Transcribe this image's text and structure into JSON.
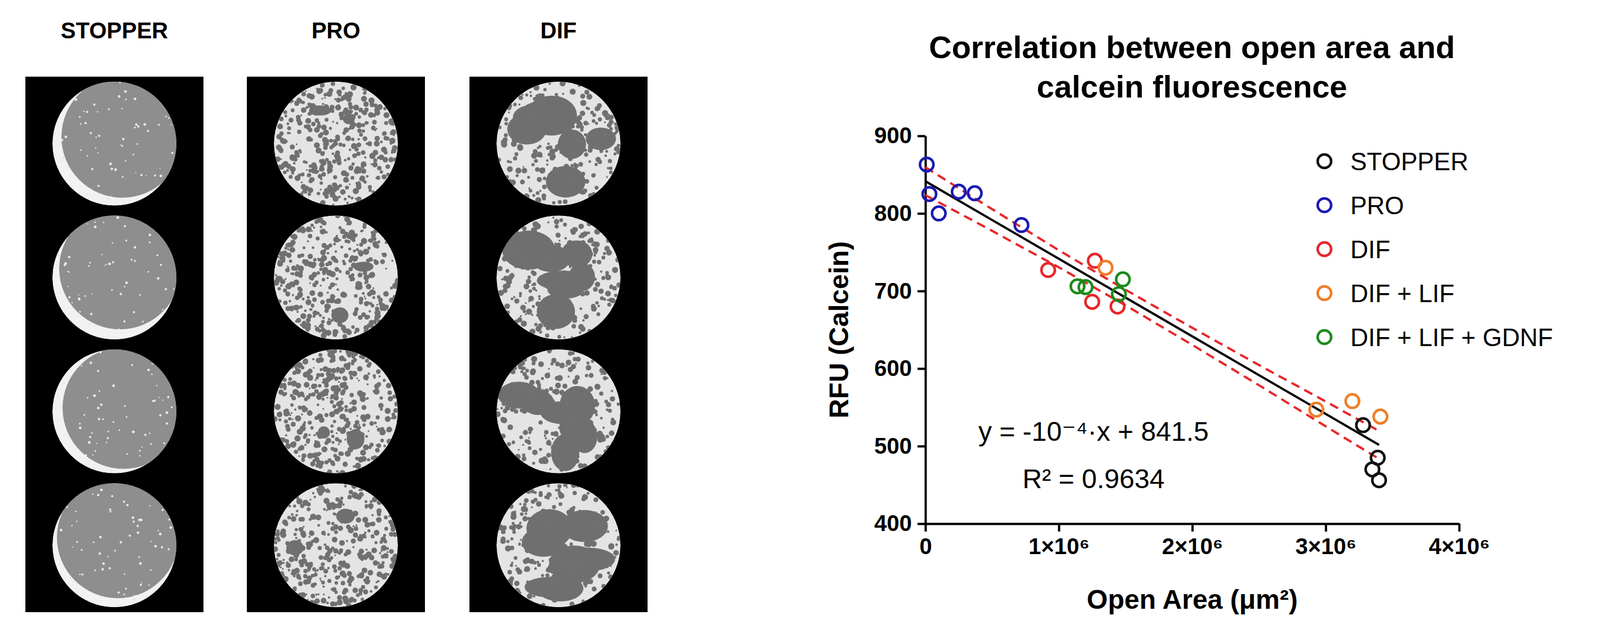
{
  "chart_data": {
    "type": "scatter",
    "title": "Correlation between open area and calcein fluorescence",
    "x_label": "Open Area (μm²)",
    "y_label": "RFU (Calcein)",
    "xlim": [
      0,
      4000000
    ],
    "ylim": [
      400,
      900
    ],
    "xticks": [
      0,
      {
        "value": 1000000,
        "label": "1×10⁶"
      },
      {
        "value": 2000000,
        "label": "2×10⁶"
      },
      {
        "value": 3000000,
        "label": "3×10⁶"
      },
      {
        "value": 4000000,
        "label": "4×10⁶"
      }
    ],
    "yticks": [
      400,
      500,
      600,
      700,
      800,
      900
    ],
    "grid": false,
    "legend": "top-right",
    "series": [
      {
        "name": "STOPPER",
        "color": "#111111",
        "marker": "circle",
        "x": [
          3280000,
          3390000,
          3350000,
          3400000
        ],
        "values": [
          527,
          485,
          470,
          456
        ]
      },
      {
        "name": "PRO",
        "color": "#1a1ab4",
        "marker": "circle",
        "x": [
          10000,
          30000,
          100000,
          250000,
          370000,
          720000
        ],
        "values": [
          863,
          825,
          800,
          828,
          826,
          785
        ]
      },
      {
        "name": "DIF",
        "color": "#e8262a",
        "marker": "circle",
        "x": [
          920000,
          1270000,
          1250000,
          1440000
        ],
        "values": [
          727,
          739,
          686,
          680
        ]
      },
      {
        "name": "DIF + LIF",
        "color": "#f07d28",
        "marker": "circle",
        "x": [
          1350000,
          2930000,
          3200000,
          3410000
        ],
        "values": [
          730,
          547,
          558,
          538
        ]
      },
      {
        "name": "DIF + LIF + GDNF",
        "color": "#1a8a1a",
        "marker": "circle",
        "x": [
          1140000,
          1200000,
          1480000,
          1450000
        ],
        "values": [
          706,
          705,
          715,
          696
        ]
      }
    ],
    "fit_line": {
      "color": "#000000",
      "x": [
        0,
        3400000
      ],
      "y": [
        841.5,
        501.5
      ]
    },
    "confidence_band": {
      "color": "#e8262a",
      "line_style": "dashed",
      "x": [
        0,
        500000,
        1000000,
        1500000,
        2000000,
        2500000,
        3000000,
        3400000
      ],
      "upper": [
        859.5,
        805.5,
        752.5,
        701.5,
        652.5,
        604.5,
        557.5,
        519.5
      ],
      "lower": [
        823.5,
        777.5,
        730.5,
        681.5,
        630.5,
        578.5,
        525.5,
        483.5
      ]
    },
    "annotations": [
      "y = -10⁻⁴·x + 841.5",
      "R² = 0.9634"
    ]
  },
  "image_panel": {
    "columns": [
      "STOPPER",
      "PRO",
      "DIF"
    ]
  }
}
